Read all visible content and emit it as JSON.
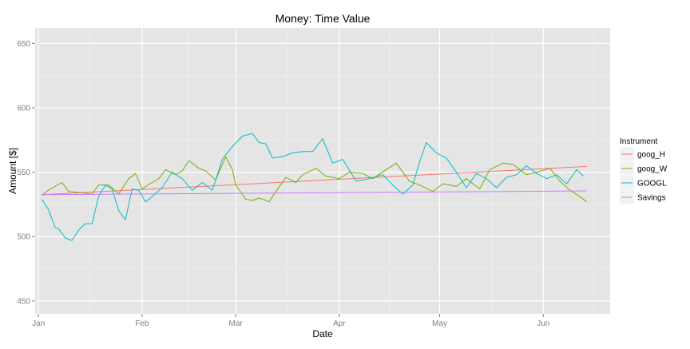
{
  "chart_data": {
    "type": "line",
    "title": "Money:  Time Value",
    "xlabel": "Date",
    "ylabel": "Amount [$]",
    "xlim": [
      "2012-12-31",
      "2013-06-21"
    ],
    "ylim": [
      440,
      662
    ],
    "x_ticks": [
      {
        "label": "Jan",
        "date": "2013-01-01"
      },
      {
        "label": "Feb",
        "date": "2013-02-01"
      },
      {
        "label": "Mar",
        "date": "2013-03-01"
      },
      {
        "label": "Apr",
        "date": "2013-04-01"
      },
      {
        "label": "May",
        "date": "2013-05-01"
      },
      {
        "label": "Jun",
        "date": "2013-06-01"
      }
    ],
    "y_ticks": [
      450,
      500,
      550,
      600,
      650
    ],
    "grid": true,
    "legend": {
      "title": "Instrument",
      "position": "right"
    },
    "series": [
      {
        "name": "goog_H",
        "color": "#F8766D",
        "x": [
          "2013-01-02",
          "2013-06-14"
        ],
        "values": [
          532.5,
          554.5
        ]
      },
      {
        "name": "goog_W",
        "color": "#7CAE00",
        "x": [
          "2013-01-02",
          "2013-01-04",
          "2013-01-08",
          "2013-01-10",
          "2013-01-14",
          "2013-01-17",
          "2013-01-19",
          "2013-01-22",
          "2013-01-25",
          "2013-01-28",
          "2013-01-30",
          "2013-02-01",
          "2013-02-04",
          "2013-02-06",
          "2013-02-08",
          "2013-02-11",
          "2013-02-13",
          "2013-02-15",
          "2013-02-18",
          "2013-02-20",
          "2013-02-23",
          "2013-02-26",
          "2013-02-28",
          "2013-03-01",
          "2013-03-04",
          "2013-03-06",
          "2013-03-08",
          "2013-03-11",
          "2013-03-13",
          "2013-03-16",
          "2013-03-19",
          "2013-03-21",
          "2013-03-25",
          "2013-03-28",
          "2013-04-01",
          "2013-04-04",
          "2013-04-08",
          "2013-04-11",
          "2013-04-15",
          "2013-04-18",
          "2013-04-22",
          "2013-04-25",
          "2013-04-29",
          "2013-05-02",
          "2013-05-06",
          "2013-05-09",
          "2013-05-13",
          "2013-05-16",
          "2013-05-20",
          "2013-05-23",
          "2013-05-27",
          "2013-05-30",
          "2013-06-03",
          "2013-06-06",
          "2013-06-09",
          "2013-06-12",
          "2013-06-14"
        ],
        "values": [
          532,
          536,
          542,
          535,
          534,
          533,
          540,
          540,
          533,
          545,
          549,
          537,
          542,
          545,
          552,
          548,
          551,
          559,
          553,
          551,
          544,
          562,
          552,
          540,
          529,
          528,
          530,
          527,
          535,
          546,
          542,
          548,
          553,
          547,
          545,
          550,
          549,
          545,
          552,
          557,
          543,
          540,
          535,
          541,
          539,
          545,
          537,
          552,
          557,
          556,
          548,
          550,
          553,
          543,
          536,
          531,
          527
        ]
      },
      {
        "name": "GOOGL",
        "color": "#00BFC4",
        "x": [
          "2013-01-02",
          "2013-01-04",
          "2013-01-06",
          "2013-01-07",
          "2013-01-09",
          "2013-01-11",
          "2013-01-13",
          "2013-01-15",
          "2013-01-17",
          "2013-01-19",
          "2013-01-21",
          "2013-01-23",
          "2013-01-25",
          "2013-01-27",
          "2013-01-29",
          "2013-01-31",
          "2013-02-02",
          "2013-02-04",
          "2013-02-07",
          "2013-02-10",
          "2013-02-13",
          "2013-02-16",
          "2013-02-19",
          "2013-02-22",
          "2013-02-25",
          "2013-02-28",
          "2013-03-03",
          "2013-03-06",
          "2013-03-08",
          "2013-03-10",
          "2013-03-12",
          "2013-03-15",
          "2013-03-18",
          "2013-03-21",
          "2013-03-24",
          "2013-03-27",
          "2013-03-30",
          "2013-04-02",
          "2013-04-06",
          "2013-04-10",
          "2013-04-14",
          "2013-04-17",
          "2013-04-20",
          "2013-04-23",
          "2013-04-25",
          "2013-04-27",
          "2013-04-30",
          "2013-05-03",
          "2013-05-06",
          "2013-05-09",
          "2013-05-12",
          "2013-05-15",
          "2013-05-18",
          "2013-05-21",
          "2013-05-24",
          "2013-05-27",
          "2013-05-30",
          "2013-06-02",
          "2013-06-05",
          "2013-06-08",
          "2013-06-11",
          "2013-06-13"
        ],
        "values": [
          529,
          521,
          507,
          506,
          499,
          497,
          505,
          510,
          510,
          531,
          540,
          537,
          520,
          513,
          537,
          536,
          527,
          531,
          538,
          550,
          545,
          536,
          542,
          536,
          560,
          570,
          578,
          580,
          573,
          572,
          561,
          562,
          565,
          566,
          566,
          576,
          557,
          560,
          543,
          545,
          548,
          540,
          533,
          540,
          558,
          573,
          565,
          561,
          550,
          538,
          549,
          545,
          538,
          546,
          548,
          555,
          549,
          545,
          548,
          541,
          552,
          547
        ]
      },
      {
        "name": "Savings",
        "color": "#C77CFF",
        "x": [
          "2013-01-02",
          "2013-06-14"
        ],
        "values": [
          532.5,
          535.5
        ]
      }
    ]
  }
}
